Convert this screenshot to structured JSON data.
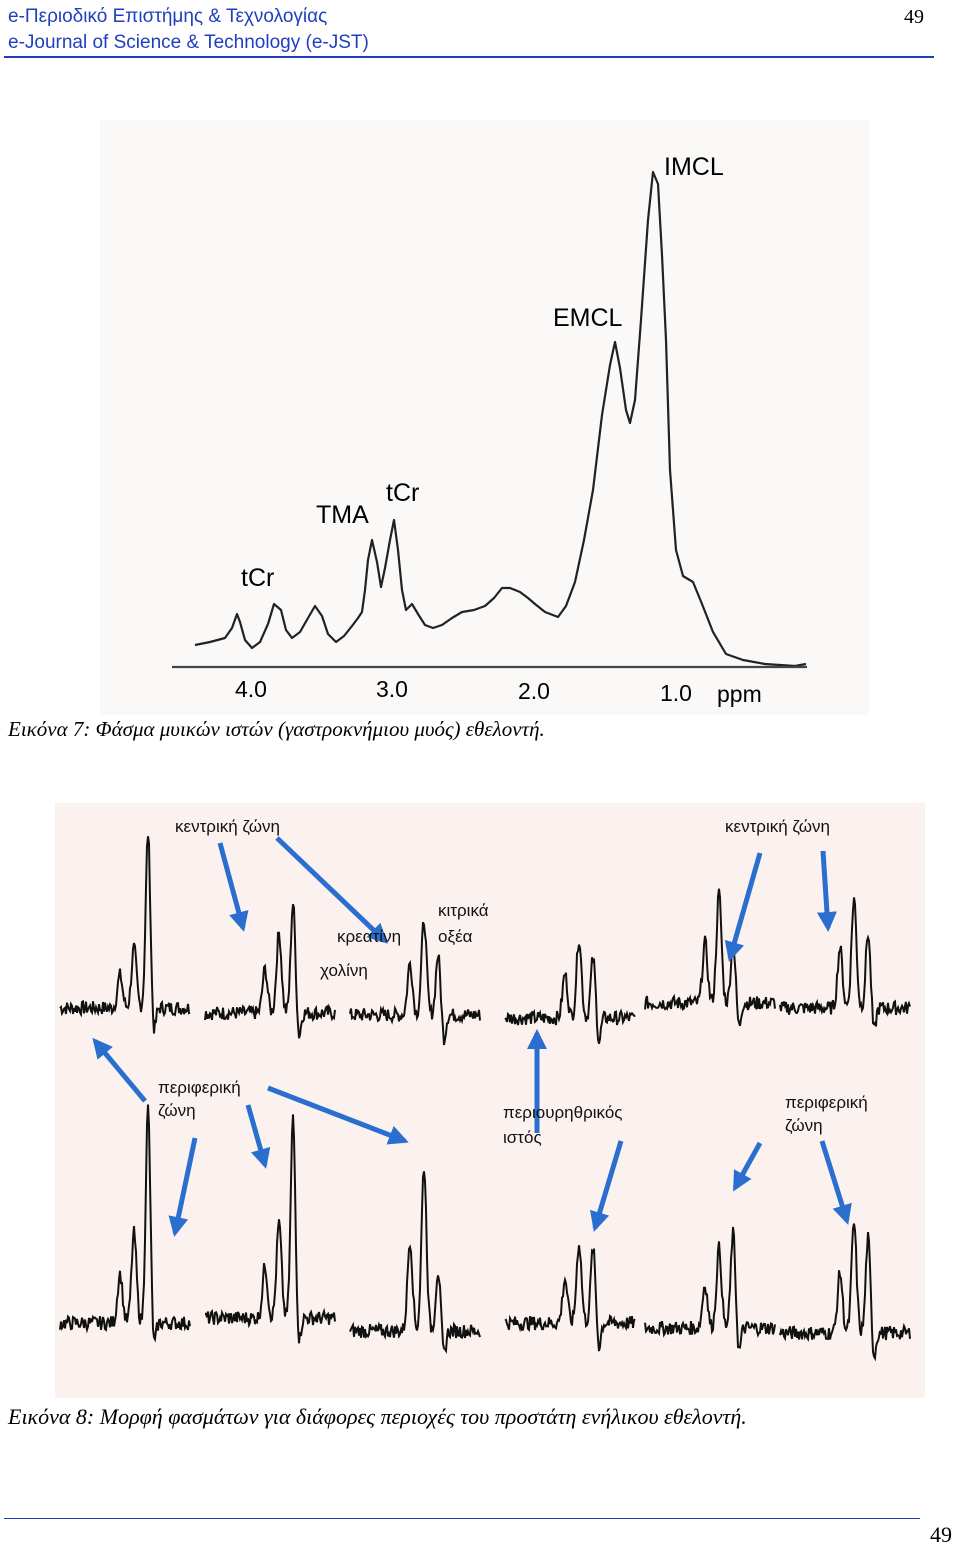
{
  "header": {
    "journal_gr": "e-Περιοδικό Επιστήμης & Τεχνολογίας",
    "journal_en": "e-Journal of Science & Technology (e-JST)",
    "page_number": "49"
  },
  "figure7": {
    "peak_labels": [
      "tCr",
      "TMA",
      "tCr",
      "EMCL",
      "IMCL"
    ],
    "axis_ticks": [
      "4.0",
      "3.0",
      "2.0",
      "1.0"
    ],
    "axis_unit": "ppm",
    "caption": "Εικόνα 7: Φάσμα μυικών ιστών (γαστροκνήμιου μυός) εθελοντή."
  },
  "figure8": {
    "labels": {
      "central_zone_left": "κεντρική ζώνη",
      "central_zone_right": "κεντρική ζώνη",
      "creatine": "κρεατίνη",
      "choline": "χολίνη",
      "citrate_line1": "κιτρικά",
      "citrate_line2": "οξέα",
      "peripheral_left_line1": "περιφερική",
      "peripheral_left_line2": "ζώνη",
      "periurethral_line1": "περιουρηθρικός",
      "periurethral_line2": "ιστός",
      "peripheral_right_line1": "περιφερική",
      "peripheral_right_line2": "ζώνη"
    },
    "caption": "Εικόνα 8: Μορφή φασμάτων για διάφορες περιοχές του προστάτη ενήλικου εθελοντή."
  },
  "footer": {
    "page_number": "49"
  }
}
